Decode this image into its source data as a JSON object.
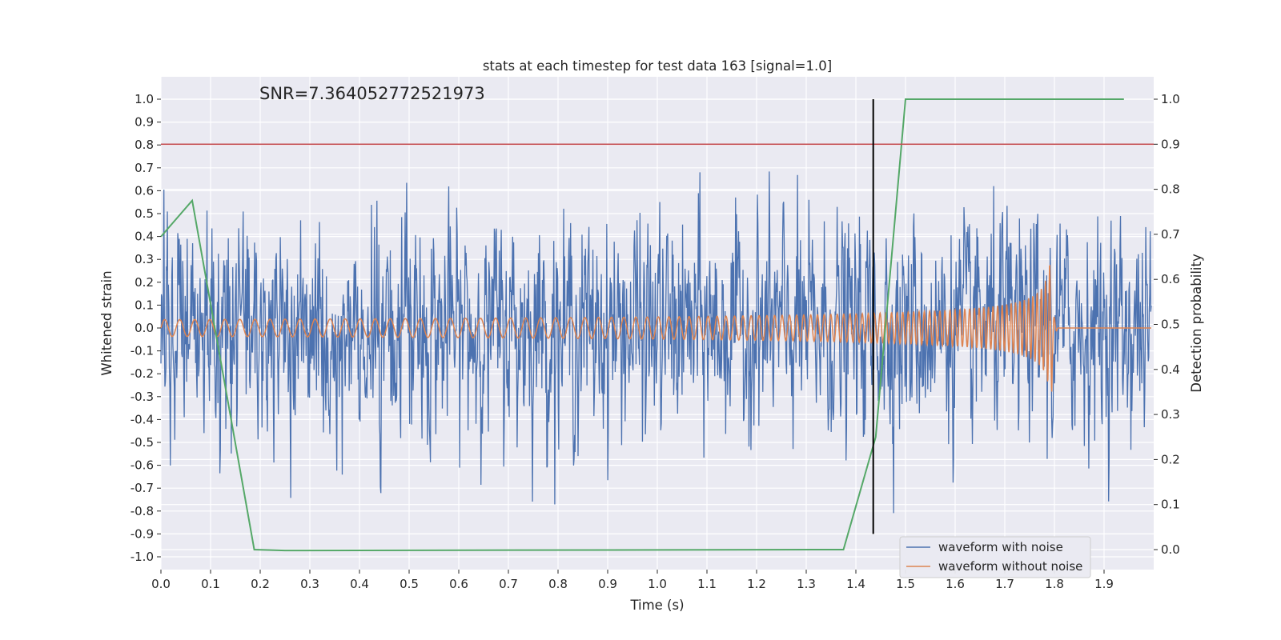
{
  "chart_data": {
    "type": "line",
    "title": "stats at each timestep for test data 163 [signal=1.0]",
    "xlabel": "Time (s)",
    "ylabel_left": "Whitened strain",
    "ylabel_right": "Detection probability",
    "annotation": "SNR=7.364052772521973",
    "xlim": [
      0.0,
      2.0
    ],
    "ylim_left": [
      -1.0,
      1.0
    ],
    "ylim_right": [
      -0.05,
      1.0
    ],
    "x_ticks": [
      "0.0",
      "0.1",
      "0.2",
      "0.3",
      "0.4",
      "0.5",
      "0.6",
      "0.7",
      "0.8",
      "0.9",
      "1.0",
      "1.1",
      "1.2",
      "1.3",
      "1.4",
      "1.5",
      "1.6",
      "1.7",
      "1.8",
      "1.9"
    ],
    "y_ticks_left": [
      "-1.0",
      "-0.9",
      "-0.8",
      "-0.7",
      "-0.6",
      "-0.5",
      "-0.4",
      "-0.3",
      "-0.2",
      "-0.1",
      "0.0",
      "0.1",
      "0.2",
      "0.3",
      "0.4",
      "0.5",
      "0.6",
      "0.7",
      "0.8",
      "0.9",
      "1.0"
    ],
    "y_ticks_right": [
      "0.0",
      "0.1",
      "0.2",
      "0.3",
      "0.4",
      "0.5",
      "0.6",
      "0.7",
      "0.8",
      "0.9",
      "1.0"
    ],
    "grid": true,
    "legend_position": "lower-right",
    "threshold": {
      "axis": "right",
      "value": 0.9,
      "color": "#c44e52"
    },
    "vertical_marker": {
      "x": 1.435,
      "y_from": -0.9,
      "y_to": 1.0,
      "color": "#000000"
    },
    "series": [
      {
        "name": "waveform with noise",
        "axis": "left",
        "color": "#4c72b0",
        "kind": "noise",
        "samples": 2000,
        "amplitude_std": 0.2
      },
      {
        "name": "waveform without noise",
        "axis": "left",
        "color": "#dd8452",
        "kind": "chirp",
        "merger_time": 1.795
      },
      {
        "axis": "right",
        "color": "#55a868",
        "kind": "probability",
        "x": [
          0.0,
          0.063,
          0.188,
          0.25,
          1.375,
          1.44,
          1.5,
          1.94
        ],
        "y": [
          0.695,
          0.775,
          0.0,
          -0.002,
          0.0,
          0.25,
          1.0,
          1.0
        ]
      }
    ]
  }
}
